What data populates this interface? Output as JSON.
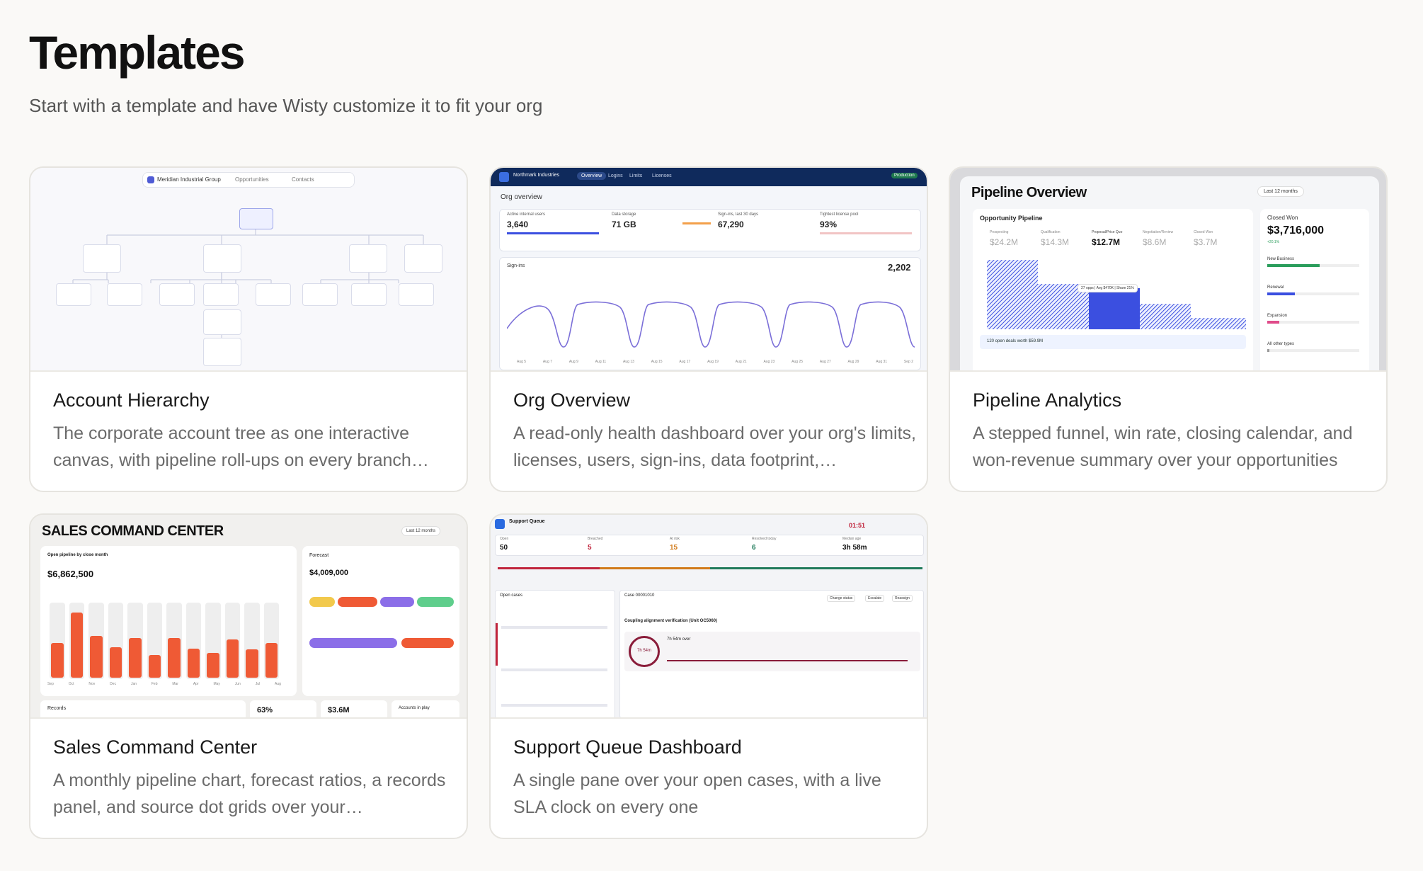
{
  "header": {
    "title": "Templates",
    "subtitle": "Start with a template and have Wisty customize it to fit your org"
  },
  "cards": [
    {
      "title": "Account Hierarchy",
      "description": "The corporate account tree as one interactive canvas, with pipeline roll-ups on every branch…",
      "preview": {
        "toolbar_account": "Meridian Industrial Group",
        "toolbar_opportunities": "Opportunities",
        "toolbar_contacts": "Contacts"
      }
    },
    {
      "title": "Org Overview",
      "description": "A read-only health dashboard over your org's limits, licenses, users, sign-ins, data footprint,…",
      "preview": {
        "org_name": "Northmark Industries",
        "tabs": [
          "Overview",
          "Logins",
          "Limits",
          "Licenses"
        ],
        "env_label": "Production",
        "section": "Org overview",
        "stats": [
          {
            "label": "Active internal users",
            "value": "3,640"
          },
          {
            "label": "Data storage",
            "value": "71 GB"
          },
          {
            "label": "Sign-ins, last 30 days",
            "value": "67,290"
          },
          {
            "label": "Tightest license pool",
            "value": "93%"
          }
        ],
        "chart_title": "Sign-ins",
        "chart_total": "2,202",
        "x_labels": [
          "Aug 5",
          "Aug 7",
          "Aug 9",
          "Aug 11",
          "Aug 13",
          "Aug 15",
          "Aug 17",
          "Aug 19",
          "Aug 21",
          "Aug 23",
          "Aug 25",
          "Aug 27",
          "Aug 29",
          "Aug 31",
          "Sep 2"
        ]
      }
    },
    {
      "title": "Pipeline Analytics",
      "description": "A stepped funnel, win rate, closing calendar, and won-revenue summary over your opportunities",
      "preview": {
        "heading": "Pipeline Overview",
        "range": "Last 12 months",
        "panel": "Opportunity Pipeline",
        "stages": [
          {
            "label": "Prospecting",
            "value": "$24.2M"
          },
          {
            "label": "Qualification",
            "value": "$14.3M"
          },
          {
            "label": "Proposal/Price Quo",
            "value": "$12.7M"
          },
          {
            "label": "Negotiation/Review",
            "value": "$8.6M"
          },
          {
            "label": "Closed Won",
            "value": "$3.7M"
          }
        ],
        "tooltip": "27 opps | Avg $470K | Share 21%",
        "footer": "120 open deals worth $59.9M",
        "closed_label": "Closed Won",
        "closed_value": "$3,716,000",
        "closed_delta": "+20.1%",
        "breakdown": [
          {
            "label": "New Business",
            "value": 0.57
          },
          {
            "label": "Renewal",
            "value": 0.3
          },
          {
            "label": "Expansion",
            "value": 0.13
          },
          {
            "label": "All other types",
            "value": 0.02
          }
        ]
      }
    },
    {
      "title": "Sales Command Center",
      "description": "A monthly pipeline chart, forecast ratios, a records panel, and source dot grids over your…",
      "preview": {
        "heading": "SALES COMMAND CENTER",
        "range": "Last 12 months",
        "pipeline_label": "Open pipeline by close month",
        "pipeline_value": "$6,862,500",
        "months": [
          "Sep",
          "Oct",
          "Nov",
          "Dec",
          "Jan",
          "Feb",
          "Mar",
          "Apr",
          "May",
          "Jun",
          "Jul",
          "Aug"
        ],
        "bar_levels": [
          0.45,
          0.85,
          0.55,
          0.4,
          0.52,
          0.3,
          0.52,
          0.38,
          0.32,
          0.5,
          0.37,
          0.45
        ],
        "forecast_label": "Forecast",
        "forecast_value": "$4,009,000",
        "records_label": "Records",
        "kpi_rate": "63%",
        "kpi_amount": "$3.6M",
        "accounts_label": "Accounts in play"
      }
    },
    {
      "title": "Support Queue Dashboard",
      "description": "A single pane over your open cases, with a live SLA clock on every one",
      "preview": {
        "heading": "Support Queue",
        "timer": "01:51",
        "stats": [
          {
            "label": "Open",
            "value": "50"
          },
          {
            "label": "Breached",
            "value": "5"
          },
          {
            "label": "At risk",
            "value": "15"
          },
          {
            "label": "Resolved today",
            "value": "6"
          },
          {
            "label": "Median age",
            "value": "3h 58m"
          }
        ],
        "list_title": "Open cases",
        "case_id": "Case 00001010",
        "case_subject": "Coupling alignment verification (Unit OC5060)",
        "ring_label": "7h 54m",
        "ring_caption": "7h 54m over",
        "actions": [
          "Change status",
          "Escalate",
          "Reassign"
        ]
      }
    }
  ],
  "colors": {
    "accent_blue": "#3b4fe0",
    "navy": "#0f2a5c",
    "orange": "#ef5a35",
    "purple": "#8b6ee8",
    "green": "#5fce8c",
    "yellow": "#f2c94c",
    "maroon": "#8a1c3a"
  }
}
